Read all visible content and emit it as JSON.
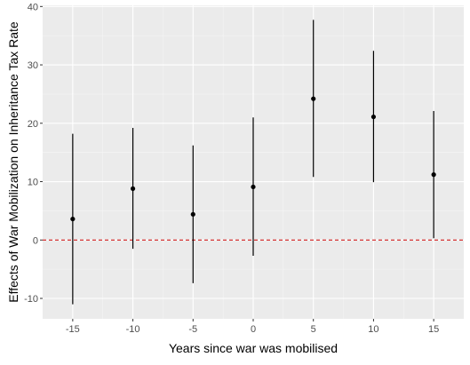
{
  "chart_data": {
    "type": "scatter",
    "title": "",
    "xlabel": "Years since war was mobilised",
    "ylabel": "Effects of War Mobilization on Inheritance Tax Rate",
    "xlim": [
      -17.5,
      17.5
    ],
    "ylim": [
      -13.5,
      40.2
    ],
    "x_ticks": [
      -15,
      -10,
      -5,
      0,
      5,
      10,
      15
    ],
    "y_ticks": [
      -10,
      0,
      10,
      20,
      30,
      40
    ],
    "x_tick_labels": [
      "-15",
      "-10",
      "-5",
      "0",
      "5",
      "10",
      "15"
    ],
    "y_tick_labels": [
      "-10",
      "0",
      "10",
      "20",
      "30",
      "40"
    ],
    "grid": true,
    "legend": "none",
    "series": [
      {
        "points": [
          {
            "x": -15,
            "y": 3.6,
            "lo": -11.0,
            "hi": 18.2
          },
          {
            "x": -10,
            "y": 8.8,
            "lo": -1.5,
            "hi": 19.2
          },
          {
            "x": -5,
            "y": 4.4,
            "lo": -7.4,
            "hi": 16.2
          },
          {
            "x": 0,
            "y": 9.1,
            "lo": -2.7,
            "hi": 21.0
          },
          {
            "x": 5,
            "y": 24.2,
            "lo": 10.8,
            "hi": 37.7
          },
          {
            "x": 10,
            "y": 21.1,
            "lo": 9.9,
            "hi": 32.4
          },
          {
            "x": 15,
            "y": 11.2,
            "lo": 0.3,
            "hi": 22.1
          }
        ]
      }
    ],
    "reference_line": {
      "y": 0,
      "style": "dashed"
    },
    "colors": {
      "panel_background": "#ebebeb",
      "grid_major": "#ffffff",
      "grid_minor": "#f5f5f5",
      "points": "#000000",
      "error_bars": "#000000",
      "reference_line": "#cc0000"
    }
  }
}
